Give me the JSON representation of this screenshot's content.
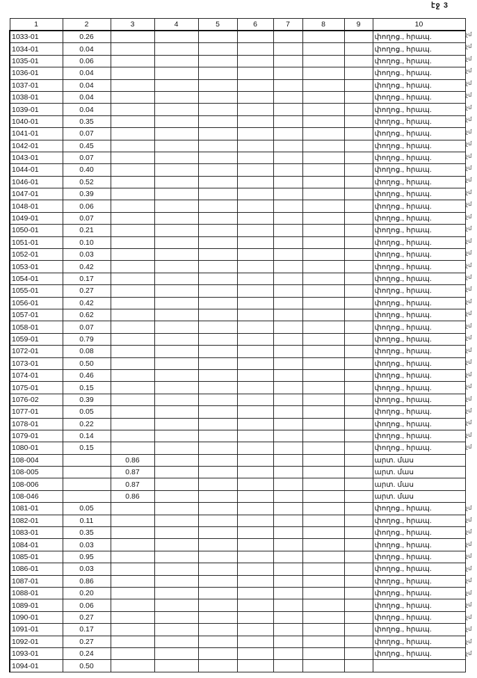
{
  "page_label": "էջ 3",
  "headers": [
    "1",
    "2",
    "3",
    "4",
    "5",
    "6",
    "7",
    "8",
    "9",
    "10"
  ],
  "rows": [
    {
      "id": "1033-01",
      "c2": "0.26",
      "c3": "",
      "c10": "փողոց., հրապ.",
      "mark": "չմ"
    },
    {
      "id": "1034-01",
      "c2": "0.04",
      "c3": "",
      "c10": "փողոց., հրապ.",
      "mark": "չմ"
    },
    {
      "id": "1035-01",
      "c2": "0.06",
      "c3": "",
      "c10": "փողոց., հրապ.",
      "mark": "չմ"
    },
    {
      "id": "1036-01",
      "c2": "0.04",
      "c3": "",
      "c10": "փողոց., հրապ.",
      "mark": "չմ"
    },
    {
      "id": "1037-01",
      "c2": "0.04",
      "c3": "",
      "c10": "փողոց., հրապ.",
      "mark": "չմ"
    },
    {
      "id": "1038-01",
      "c2": "0.04",
      "c3": "",
      "c10": "փողոց., հրապ.",
      "mark": "չմ"
    },
    {
      "id": "1039-01",
      "c2": "0.04",
      "c3": "",
      "c10": "փողոց., հրապ.",
      "mark": "չմ"
    },
    {
      "id": "1040-01",
      "c2": "0.35",
      "c3": "",
      "c10": "փողոց., հրապ.",
      "mark": "չմ"
    },
    {
      "id": "1041-01",
      "c2": "0.07",
      "c3": "",
      "c10": "փողոց., հրապ.",
      "mark": "չմ"
    },
    {
      "id": "1042-01",
      "c2": "0.45",
      "c3": "",
      "c10": "փողոց., հրապ.",
      "mark": "չմ"
    },
    {
      "id": "1043-01",
      "c2": "0.07",
      "c3": "",
      "c10": "փողոց., հրապ.",
      "mark": "չմ"
    },
    {
      "id": "1044-01",
      "c2": "0.40",
      "c3": "",
      "c10": "փողոց., հրապ.",
      "mark": "չմ"
    },
    {
      "id": "1046-01",
      "c2": "0.52",
      "c3": "",
      "c10": "փողոց., հրապ.",
      "mark": "չմ"
    },
    {
      "id": "1047-01",
      "c2": "0.39",
      "c3": "",
      "c10": "փողոց., հրապ.",
      "mark": "չմ"
    },
    {
      "id": "1048-01",
      "c2": "0.06",
      "c3": "",
      "c10": "փողոց., հրապ.",
      "mark": "չմ"
    },
    {
      "id": "1049-01",
      "c2": "0.07",
      "c3": "",
      "c10": "փողոց., հրապ.",
      "mark": "չմ"
    },
    {
      "id": "1050-01",
      "c2": "0.21",
      "c3": "",
      "c10": "փողոց., հրապ.",
      "mark": "չմ"
    },
    {
      "id": "1051-01",
      "c2": "0.10",
      "c3": "",
      "c10": "փողոց., հրապ.",
      "mark": "չմ"
    },
    {
      "id": "1052-01",
      "c2": "0.03",
      "c3": "",
      "c10": "փողոց., հրապ.",
      "mark": "չմ"
    },
    {
      "id": "1053-01",
      "c2": "0.42",
      "c3": "",
      "c10": "փողոց., հրապ.",
      "mark": "չմ"
    },
    {
      "id": "1054-01",
      "c2": "0.17",
      "c3": "",
      "c10": "փողոց., հրապ.",
      "mark": "չմ"
    },
    {
      "id": "1055-01",
      "c2": "0.27",
      "c3": "",
      "c10": "փողոց., հրապ.",
      "mark": "չմ"
    },
    {
      "id": "1056-01",
      "c2": "0.42",
      "c3": "",
      "c10": "փողոց., հրապ.",
      "mark": "չմ"
    },
    {
      "id": "1057-01",
      "c2": "0.62",
      "c3": "",
      "c10": "փողոց., հրապ.",
      "mark": "չմ"
    },
    {
      "id": "1058-01",
      "c2": "0.07",
      "c3": "",
      "c10": "փողոց., հրապ.",
      "mark": "չմ"
    },
    {
      "id": "1059-01",
      "c2": "0.79",
      "c3": "",
      "c10": "փողոց., հրապ.",
      "mark": "չմ"
    },
    {
      "id": "1072-01",
      "c2": "0.08",
      "c3": "",
      "c10": "փողոց., հրապ.",
      "mark": "չմ"
    },
    {
      "id": "1073-01",
      "c2": "0.50",
      "c3": "",
      "c10": "փողոց., հրապ.",
      "mark": "չմ"
    },
    {
      "id": "1074-01",
      "c2": "0.46",
      "c3": "",
      "c10": "փողոց., հրապ.",
      "mark": "չմ"
    },
    {
      "id": "1075-01",
      "c2": "0.15",
      "c3": "",
      "c10": "փողոց., հրապ.",
      "mark": "չմ"
    },
    {
      "id": "1076-02",
      "c2": "0.39",
      "c3": "",
      "c10": "փողոց., հրապ.",
      "mark": "չմ"
    },
    {
      "id": "1077-01",
      "c2": "0.05",
      "c3": "",
      "c10": "փողոց., հրապ.",
      "mark": "չմ"
    },
    {
      "id": "1078-01",
      "c2": "0.22",
      "c3": "",
      "c10": "փողոց., հրապ.",
      "mark": "չմ"
    },
    {
      "id": "1079-01",
      "c2": "0.14",
      "c3": "",
      "c10": "փողոց., հրապ.",
      "mark": "չմ"
    },
    {
      "id": "1080-01",
      "c2": "0.15",
      "c3": "",
      "c10": "փողոց., հրապ.",
      "mark": "չմ"
    },
    {
      "id": "108-004",
      "c2": "",
      "c3": "0.86",
      "c10": "արտ. մաս",
      "mark": ""
    },
    {
      "id": "108-005",
      "c2": "",
      "c3": "0.87",
      "c10": "արտ. մաս",
      "mark": ""
    },
    {
      "id": "108-006",
      "c2": "",
      "c3": "0.87",
      "c10": "արտ. մաս",
      "mark": ""
    },
    {
      "id": "108-046",
      "c2": "",
      "c3": "0.86",
      "c10": "արտ. մաս",
      "mark": ""
    },
    {
      "id": "1081-01",
      "c2": "0.05",
      "c3": "",
      "c10": "փողոց., հրապ.",
      "mark": "չմ"
    },
    {
      "id": "1082-01",
      "c2": "0.11",
      "c3": "",
      "c10": "փողոց., հրապ.",
      "mark": "չմ"
    },
    {
      "id": "1083-01",
      "c2": "0.35",
      "c3": "",
      "c10": "փողոց., հրապ.",
      "mark": "չմ"
    },
    {
      "id": "1084-01",
      "c2": "0.03",
      "c3": "",
      "c10": "փողոց., հրապ.",
      "mark": "չմ"
    },
    {
      "id": "1085-01",
      "c2": "0.95",
      "c3": "",
      "c10": "փողոց., հրապ.",
      "mark": "չմ"
    },
    {
      "id": "1086-01",
      "c2": "0.03",
      "c3": "",
      "c10": "փողոց., հրապ.",
      "mark": "չմ"
    },
    {
      "id": "1087-01",
      "c2": "0.86",
      "c3": "",
      "c10": "փողոց., հրապ.",
      "mark": "չմ"
    },
    {
      "id": "1088-01",
      "c2": "0.20",
      "c3": "",
      "c10": "փողոց., հրապ.",
      "mark": "չմ"
    },
    {
      "id": "1089-01",
      "c2": "0.06",
      "c3": "",
      "c10": "փողոց., հրապ.",
      "mark": "չմ"
    },
    {
      "id": "1090-01",
      "c2": "0.27",
      "c3": "",
      "c10": "փողոց., հրապ.",
      "mark": "չմ"
    },
    {
      "id": "1091-01",
      "c2": "0.17",
      "c3": "",
      "c10": "փողոց., հրապ.",
      "mark": "չմ"
    },
    {
      "id": "1092-01",
      "c2": "0.27",
      "c3": "",
      "c10": "փողոց., հրապ.",
      "mark": "չմ"
    },
    {
      "id": "1093-01",
      "c2": "0.24",
      "c3": "",
      "c10": "փողոց., հրապ.",
      "mark": "չմ"
    },
    {
      "id": "1094-01",
      "c2": "0.50",
      "c3": "",
      "c10": "",
      "mark": ""
    }
  ]
}
